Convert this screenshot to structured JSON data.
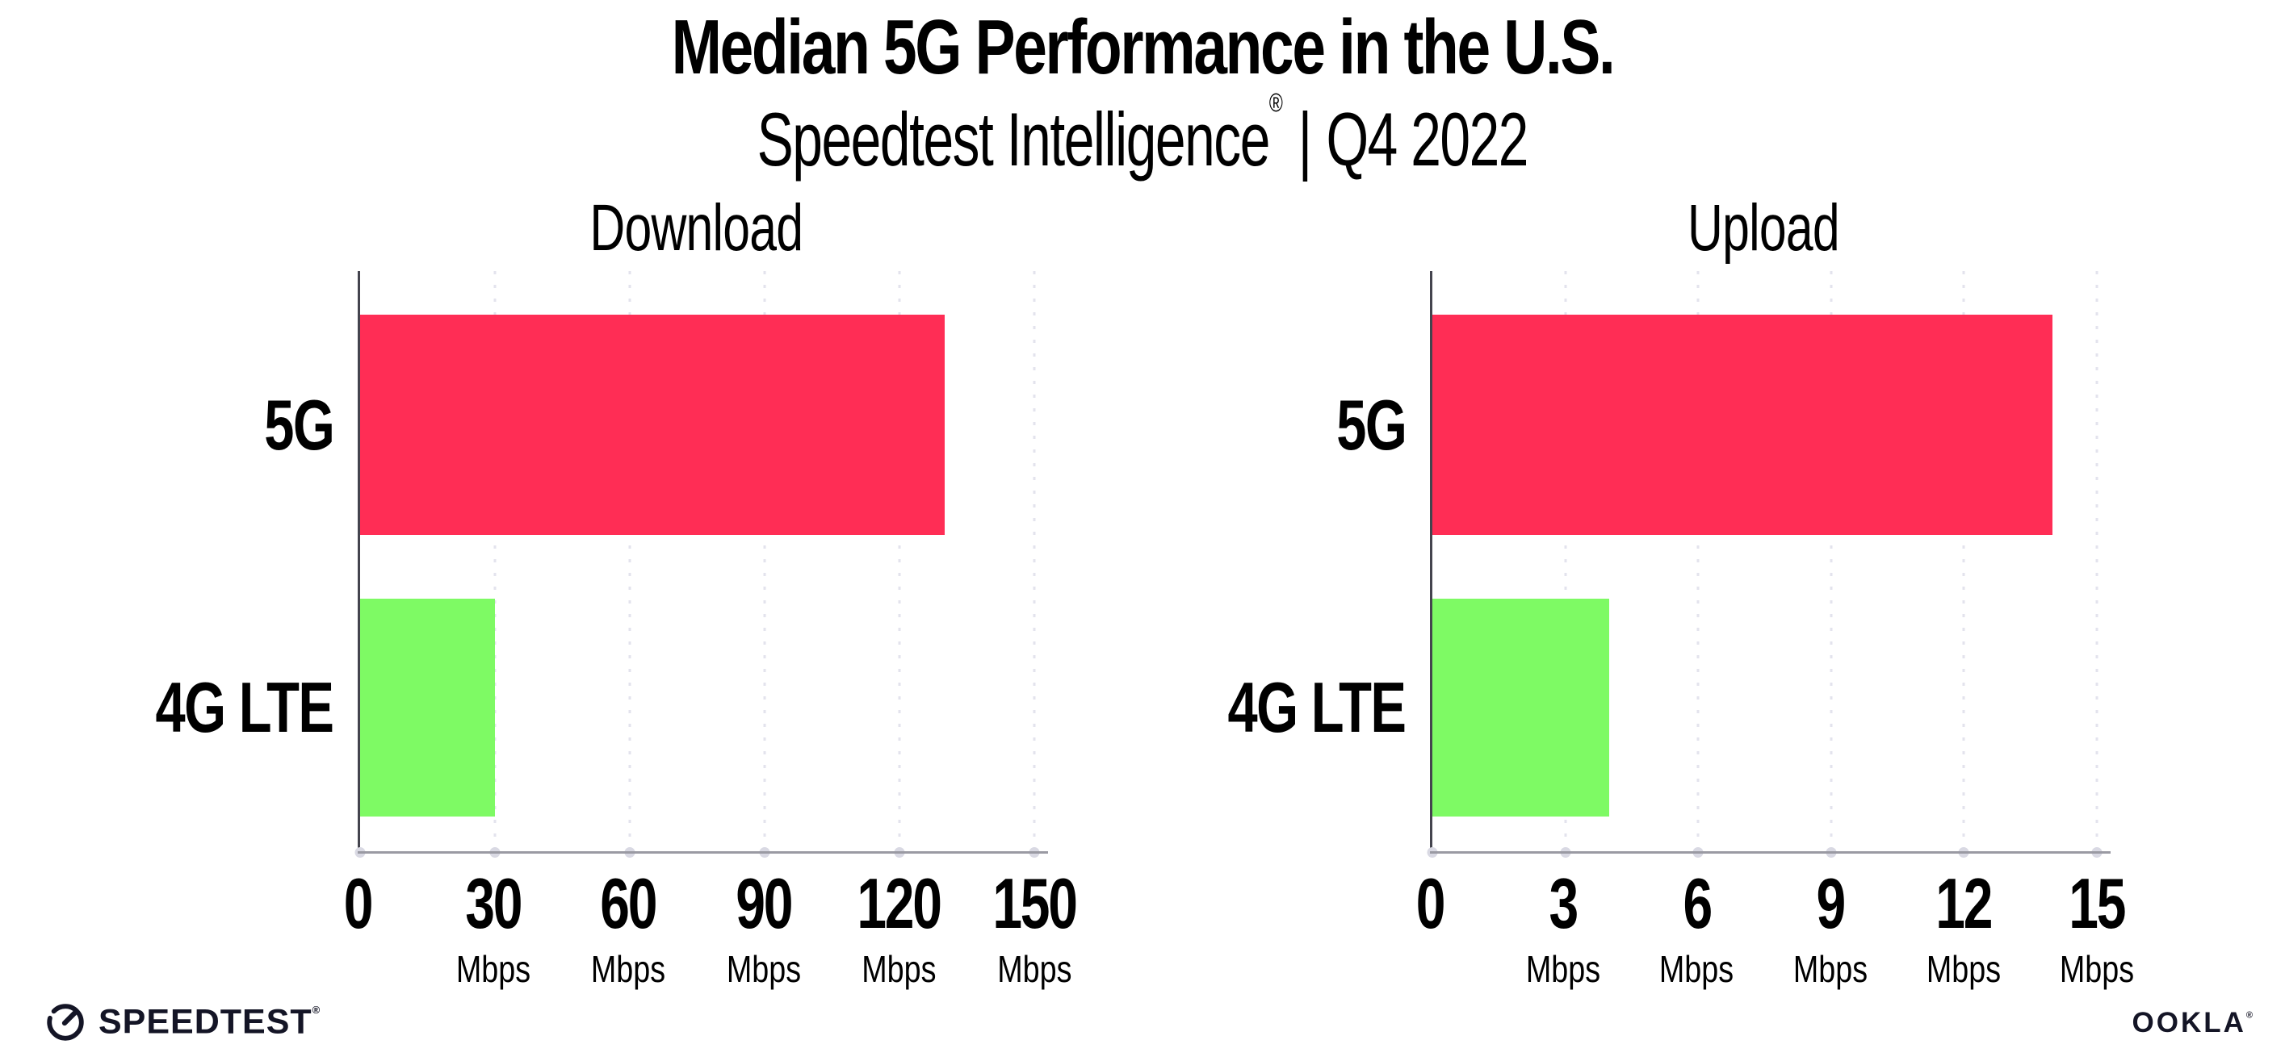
{
  "header": {
    "title": "Median 5G Performance in the U.S.",
    "subtitle": {
      "brand": "Speedtest Intelligence",
      "registered": "®",
      "separator": "|",
      "period": "Q4 2022"
    }
  },
  "chart_data": [
    {
      "type": "bar",
      "orientation": "horizontal",
      "title": "Download",
      "categories": [
        "5G",
        "4G LTE"
      ],
      "values": [
        130,
        30
      ],
      "unit": "Mbps",
      "xlim": [
        0,
        150
      ],
      "xticks": [
        0,
        30,
        60,
        90,
        120,
        150
      ],
      "series_colors": {
        "5G": "#FF2D55",
        "4G LTE": "#7EFA64"
      },
      "grid": "vertical-dotted",
      "legend": "none"
    },
    {
      "type": "bar",
      "orientation": "horizontal",
      "title": "Upload",
      "categories": [
        "5G",
        "4G LTE"
      ],
      "values": [
        14,
        4
      ],
      "unit": "Mbps",
      "xlim": [
        0,
        15
      ],
      "xticks": [
        0,
        3,
        6,
        9,
        12,
        15
      ],
      "series_colors": {
        "5G": "#FF2D55",
        "4G LTE": "#7EFA64"
      },
      "grid": "vertical-dotted",
      "legend": "none"
    }
  ],
  "colors": {
    "bar_5g": "#FF2D55",
    "bar_4g_lte": "#7EFA64",
    "x_axis": "#9a9aa3",
    "y_axis": "#44444e",
    "grid_dot": "#e3e3ed",
    "axis_tick_dot": "#d9d9e3",
    "logo_ink": "#141526"
  },
  "footer": {
    "speedtest": {
      "icon": "speedtest-gauge-icon",
      "wordmark": "SPEEDTEST",
      "registered": "®"
    },
    "ookla": {
      "wordmark": "OOKLA",
      "registered": "®"
    }
  }
}
